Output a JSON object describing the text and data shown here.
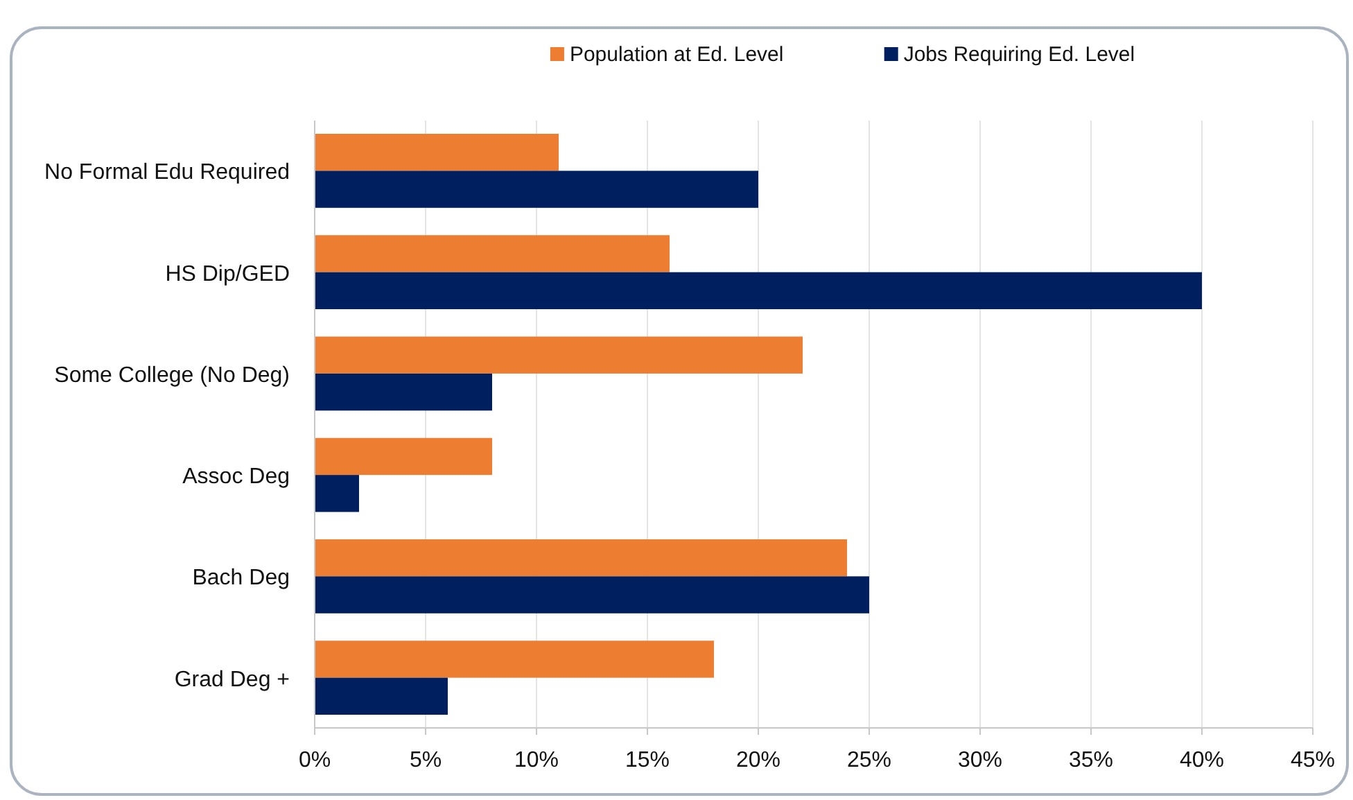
{
  "chart_data": {
    "type": "bar",
    "orientation": "horizontal",
    "categories": [
      "No Formal Edu Required",
      "HS Dip/GED",
      "Some College (No Deg)",
      "Assoc Deg",
      "Bach Deg",
      "Grad Deg +"
    ],
    "series": [
      {
        "name": "Population at Ed. Level",
        "color": "#ed7d31",
        "values": [
          11,
          16,
          22,
          8,
          24,
          18
        ]
      },
      {
        "name": "Jobs Requiring Ed. Level",
        "color": "#001f5f",
        "values": [
          20,
          40,
          8,
          2,
          25,
          6
        ]
      }
    ],
    "xlim": [
      0,
      45
    ],
    "xticks": [
      {
        "value": 0,
        "label": "0%"
      },
      {
        "value": 5,
        "label": "5%"
      },
      {
        "value": 10,
        "label": "10%"
      },
      {
        "value": 15,
        "label": "15%"
      },
      {
        "value": 20,
        "label": "20%"
      },
      {
        "value": 25,
        "label": "25%"
      },
      {
        "value": 30,
        "label": "30%"
      },
      {
        "value": 35,
        "label": "35%"
      },
      {
        "value": 40,
        "label": "40%"
      },
      {
        "value": 45,
        "label": "45%"
      }
    ],
    "grid": "x",
    "legend": "top"
  }
}
